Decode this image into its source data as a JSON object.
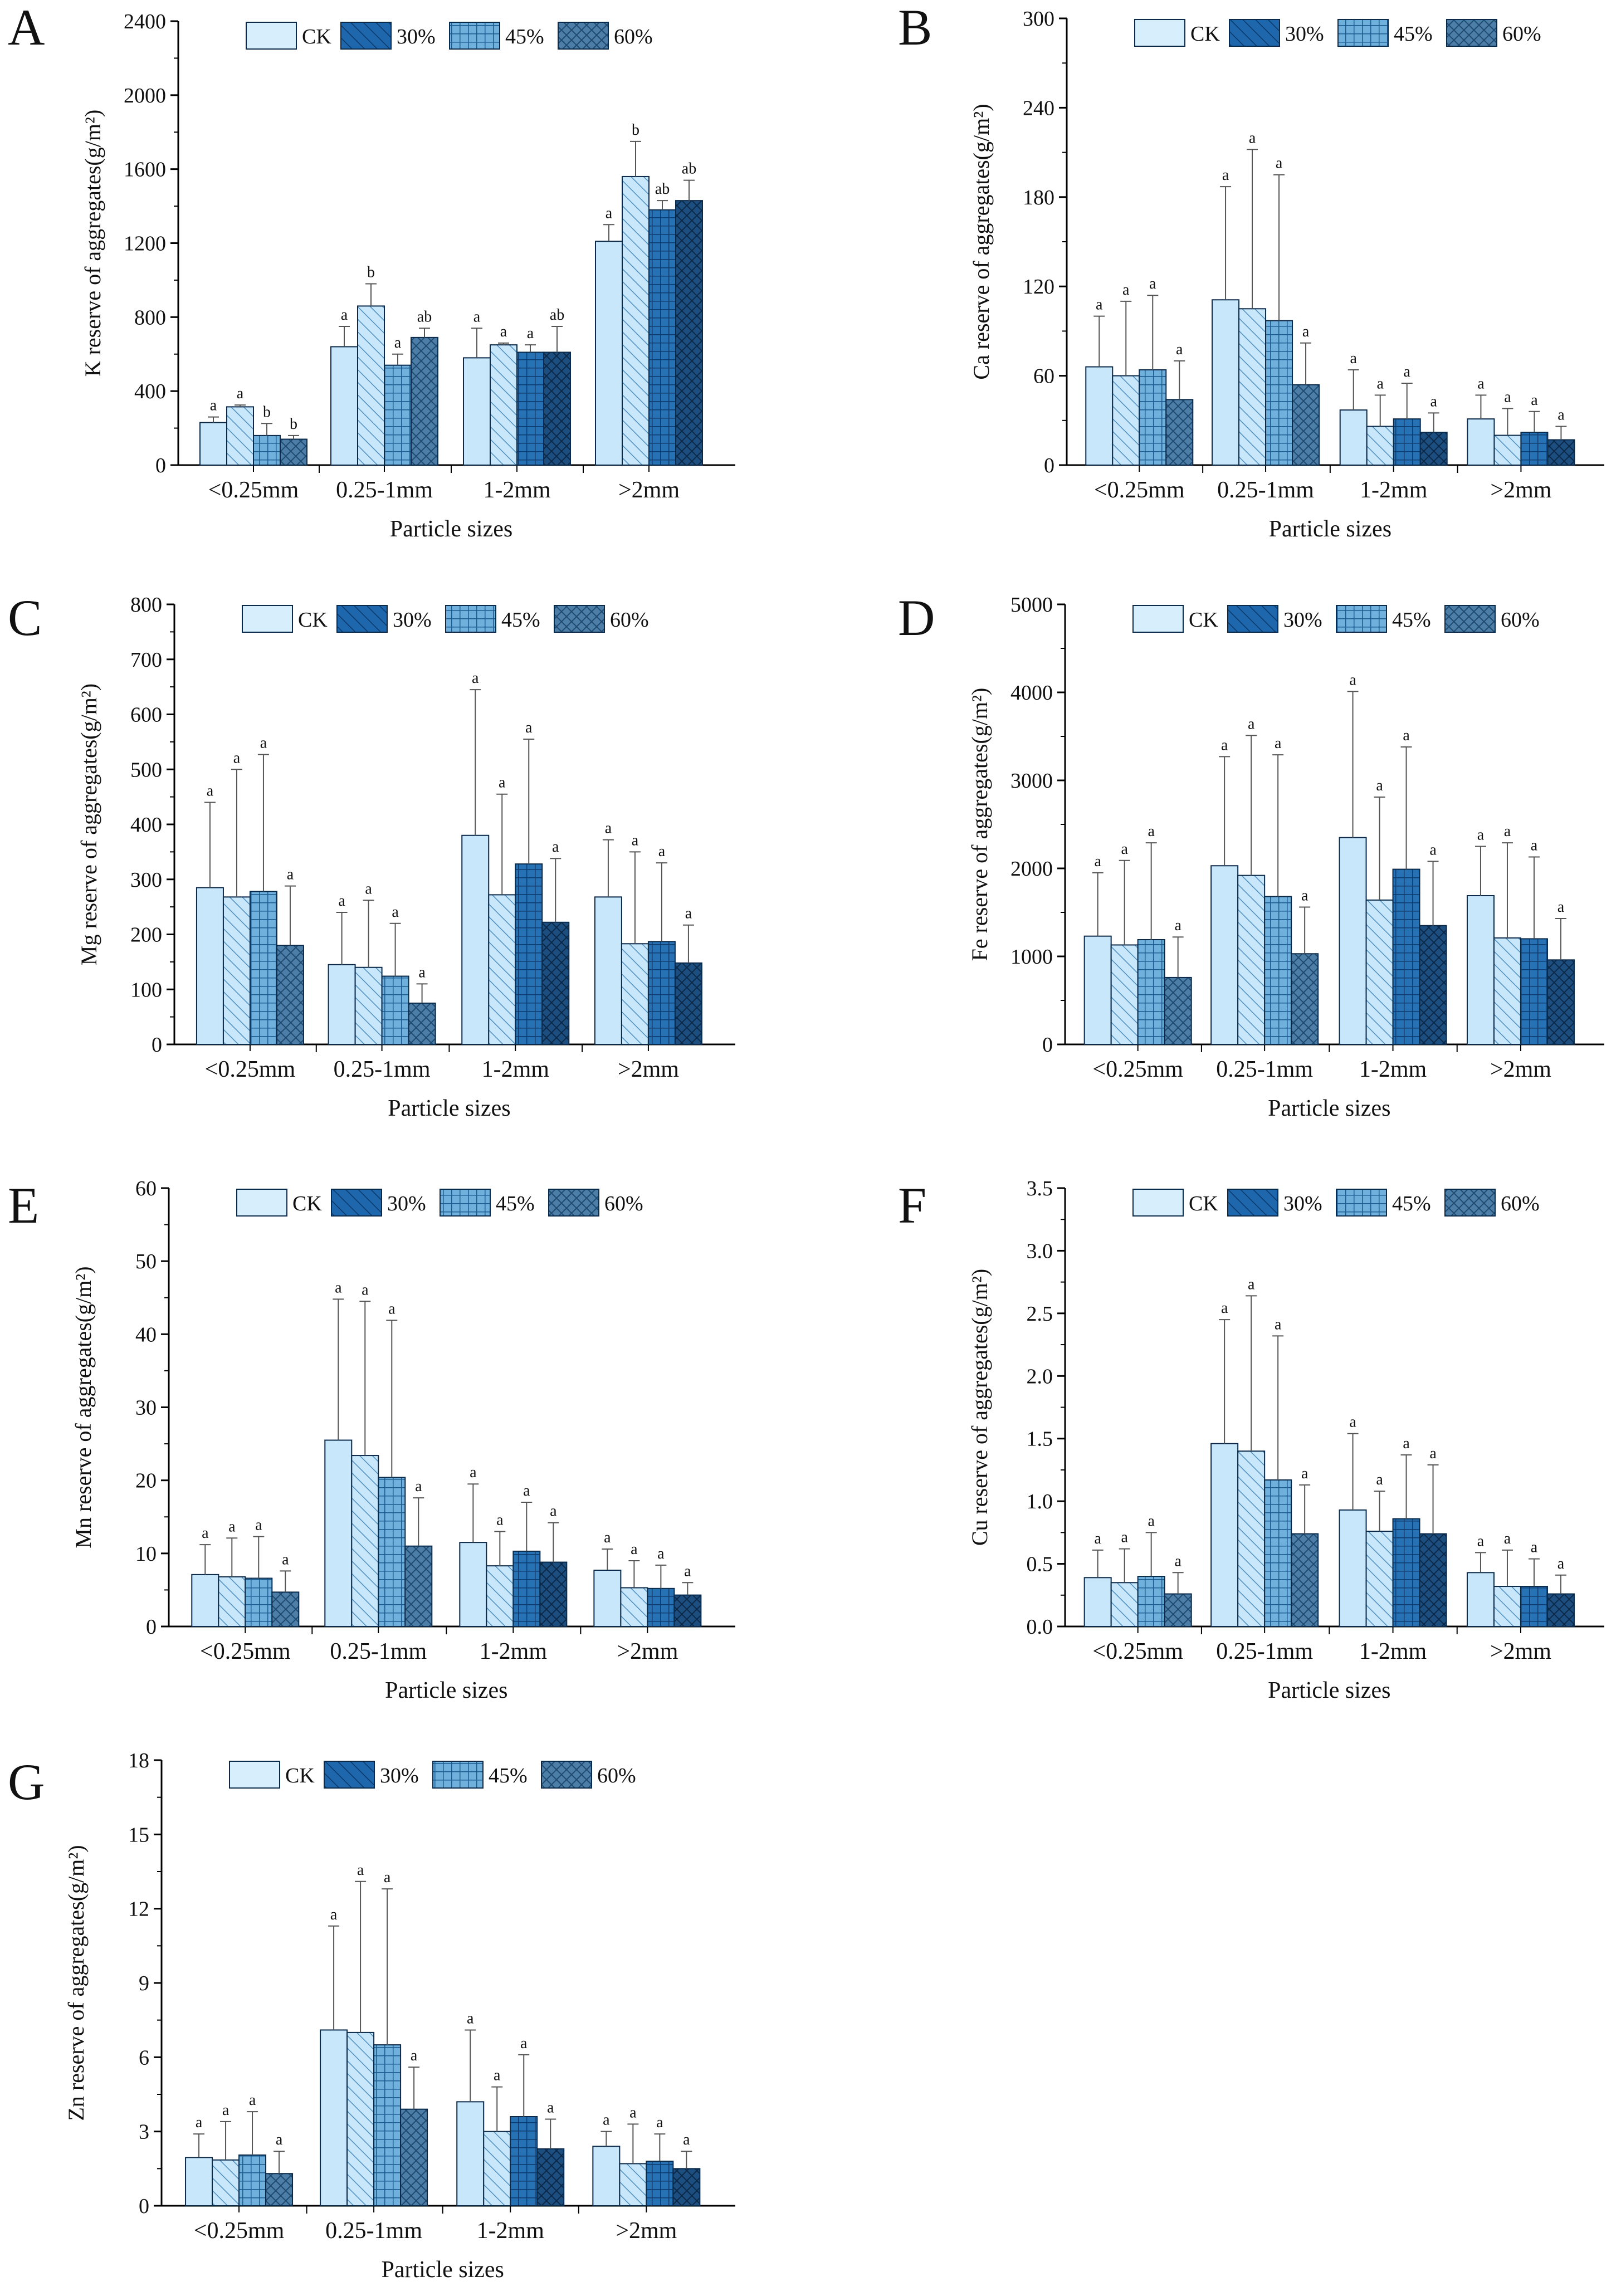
{
  "chart_data": [
    {
      "panel": "A",
      "type": "bar",
      "title": "",
      "xlabel": "Particle sizes",
      "ylabel": "K reserve of aggregates(g/m²)",
      "ylim": [
        0,
        2400
      ],
      "yticks": [
        "0",
        "400",
        "800",
        "1200",
        "1600",
        "2000",
        "2400"
      ],
      "categories": [
        "<0.25mm",
        "0.25-1mm",
        "1-2mm",
        ">2mm"
      ],
      "legend": [
        "CK",
        "30%",
        "45%",
        "60%"
      ],
      "series": [
        {
          "name": "CK",
          "values": [
            230,
            640,
            580,
            1210
          ],
          "errors": [
            260,
            750,
            740,
            1300
          ],
          "labels": [
            "a",
            "a",
            "a",
            "a"
          ]
        },
        {
          "name": "30%",
          "values": [
            315,
            860,
            650,
            1560
          ],
          "errors": [
            325,
            980,
            660,
            1750
          ],
          "labels": [
            "a",
            "b",
            "a",
            "b"
          ]
        },
        {
          "name": "45%",
          "values": [
            160,
            540,
            610,
            1380
          ],
          "errors": [
            225,
            600,
            650,
            1430
          ],
          "labels": [
            "b",
            "a",
            "a",
            "ab"
          ]
        },
        {
          "name": "60%",
          "values": [
            140,
            690,
            610,
            1430
          ],
          "errors": [
            160,
            740,
            750,
            1540
          ],
          "labels": [
            "b",
            "ab",
            "ab",
            "ab"
          ]
        }
      ]
    },
    {
      "panel": "B",
      "type": "bar",
      "xlabel": "Particle sizes",
      "ylabel": "Ca reserve of aggregates(g/m²)",
      "ylim": [
        0,
        300
      ],
      "yticks": [
        "0",
        "60",
        "120",
        "180",
        "240",
        "300"
      ],
      "categories": [
        "<0.25mm",
        "0.25-1mm",
        "1-2mm",
        ">2mm"
      ],
      "legend": [
        "CK",
        "30%",
        "45%",
        "60%"
      ],
      "series": [
        {
          "name": "CK",
          "values": [
            66,
            111,
            37,
            31
          ],
          "errors": [
            100,
            187,
            64,
            47
          ],
          "labels": [
            "a",
            "a",
            "a",
            "a"
          ]
        },
        {
          "name": "30%",
          "values": [
            60,
            105,
            26,
            20
          ],
          "errors": [
            110,
            212,
            47,
            38
          ],
          "labels": [
            "a",
            "a",
            "a",
            "a"
          ]
        },
        {
          "name": "45%",
          "values": [
            64,
            97,
            31,
            22
          ],
          "errors": [
            114,
            195,
            55,
            36
          ],
          "labels": [
            "a",
            "a",
            "a",
            "a"
          ]
        },
        {
          "name": "60%",
          "values": [
            44,
            54,
            22,
            17
          ],
          "errors": [
            70,
            82,
            35,
            26
          ],
          "labels": [
            "a",
            "a",
            "a",
            "a"
          ]
        }
      ]
    },
    {
      "panel": "C",
      "type": "bar",
      "xlabel": "Particle sizes",
      "ylabel": "Mg reserve of aggregates(g/m²)",
      "ylim": [
        0,
        800
      ],
      "yticks": [
        "0",
        "100",
        "200",
        "300",
        "400",
        "500",
        "600",
        "700",
        "800"
      ],
      "categories": [
        "<0.25mm",
        "0.25-1mm",
        "1-2mm",
        ">2mm"
      ],
      "legend": [
        "CK",
        "30%",
        "45%",
        "60%"
      ],
      "series": [
        {
          "name": "CK",
          "values": [
            285,
            145,
            380,
            268
          ],
          "errors": [
            440,
            240,
            645,
            372
          ],
          "labels": [
            "a",
            "a",
            "a",
            "a"
          ]
        },
        {
          "name": "30%",
          "values": [
            268,
            140,
            272,
            183
          ],
          "errors": [
            500,
            262,
            455,
            350
          ],
          "labels": [
            "a",
            "a",
            "a",
            "a"
          ]
        },
        {
          "name": "45%",
          "values": [
            278,
            124,
            328,
            187
          ],
          "errors": [
            527,
            220,
            555,
            330
          ],
          "labels": [
            "a",
            "a",
            "a",
            "a"
          ]
        },
        {
          "name": "60%",
          "values": [
            180,
            75,
            222,
            148
          ],
          "errors": [
            288,
            110,
            338,
            217
          ],
          "labels": [
            "a",
            "a",
            "a",
            "a"
          ]
        }
      ]
    },
    {
      "panel": "D",
      "type": "bar",
      "xlabel": "Particle sizes",
      "ylabel": "Fe reserve of aggregates(g/m²)",
      "ylim": [
        0,
        5000
      ],
      "yticks": [
        "0",
        "1000",
        "2000",
        "3000",
        "4000",
        "5000"
      ],
      "categories": [
        "<0.25mm",
        "0.25-1mm",
        "1-2mm",
        ">2mm"
      ],
      "legend": [
        "CK",
        "30%",
        "45%",
        "60%"
      ],
      "series": [
        {
          "name": "CK",
          "values": [
            1230,
            2030,
            2350,
            1690
          ],
          "errors": [
            1950,
            3270,
            4010,
            2250
          ],
          "labels": [
            "a",
            "a",
            "a",
            "a"
          ]
        },
        {
          "name": "30%",
          "values": [
            1130,
            1920,
            1640,
            1210
          ],
          "errors": [
            2090,
            3510,
            2810,
            2290
          ],
          "labels": [
            "a",
            "a",
            "a",
            "a"
          ]
        },
        {
          "name": "45%",
          "values": [
            1190,
            1680,
            1990,
            1200
          ],
          "errors": [
            2290,
            3290,
            3380,
            2130
          ],
          "labels": [
            "a",
            "a",
            "a",
            "a"
          ]
        },
        {
          "name": "60%",
          "values": [
            760,
            1030,
            1350,
            960
          ],
          "errors": [
            1220,
            1560,
            2080,
            1430
          ],
          "labels": [
            "a",
            "a",
            "a",
            "a"
          ]
        }
      ]
    },
    {
      "panel": "E",
      "type": "bar",
      "xlabel": "Particle sizes",
      "ylabel": "Mn reserve of aggregates(g/m²)",
      "ylim": [
        0,
        60
      ],
      "yticks": [
        "0",
        "10",
        "20",
        "30",
        "40",
        "50",
        "60"
      ],
      "categories": [
        "<0.25mm",
        "0.25-1mm",
        "1-2mm",
        ">2mm"
      ],
      "legend": [
        "CK",
        "30%",
        "45%",
        "60%"
      ],
      "series": [
        {
          "name": "CK",
          "values": [
            7.1,
            25.5,
            11.5,
            7.7
          ],
          "errors": [
            11.2,
            44.8,
            19.5,
            10.6
          ],
          "labels": [
            "a",
            "a",
            "a",
            "a"
          ]
        },
        {
          "name": "30%",
          "values": [
            6.8,
            23.4,
            8.3,
            5.3
          ],
          "errors": [
            12.1,
            44.5,
            13.0,
            9.0
          ],
          "labels": [
            "a",
            "a",
            "a",
            "a"
          ]
        },
        {
          "name": "45%",
          "values": [
            6.6,
            20.4,
            10.3,
            5.2
          ],
          "errors": [
            12.3,
            41.9,
            17.0,
            8.4
          ],
          "labels": [
            "a",
            "a",
            "a",
            "a"
          ]
        },
        {
          "name": "60%",
          "values": [
            4.7,
            11.0,
            8.8,
            4.3
          ],
          "errors": [
            7.6,
            17.6,
            14.2,
            6.0
          ],
          "labels": [
            "a",
            "a",
            "a",
            "a"
          ]
        }
      ]
    },
    {
      "panel": "F",
      "type": "bar",
      "xlabel": "Particle sizes",
      "ylabel": "Cu reserve of aggregates(g/m²)",
      "ylim": [
        0,
        3.5
      ],
      "yticks": [
        "0.0",
        "0.5",
        "1.0",
        "1.5",
        "2.0",
        "2.5",
        "3.0",
        "3.5"
      ],
      "categories": [
        "<0.25mm",
        "0.25-1mm",
        "1-2mm",
        ">2mm"
      ],
      "legend": [
        "CK",
        "30%",
        "45%",
        "60%"
      ],
      "series": [
        {
          "name": "CK",
          "values": [
            0.39,
            1.46,
            0.93,
            0.43
          ],
          "errors": [
            0.61,
            2.45,
            1.54,
            0.59
          ],
          "labels": [
            "a",
            "a",
            "a",
            "a"
          ]
        },
        {
          "name": "30%",
          "values": [
            0.35,
            1.4,
            0.76,
            0.32
          ],
          "errors": [
            0.62,
            2.64,
            1.08,
            0.61
          ],
          "labels": [
            "a",
            "a",
            "a",
            "a"
          ]
        },
        {
          "name": "45%",
          "values": [
            0.4,
            1.17,
            0.86,
            0.32
          ],
          "errors": [
            0.75,
            2.32,
            1.37,
            0.54
          ],
          "labels": [
            "a",
            "a",
            "a",
            "a"
          ]
        },
        {
          "name": "60%",
          "values": [
            0.26,
            0.74,
            0.74,
            0.26
          ],
          "errors": [
            0.43,
            1.13,
            1.29,
            0.41
          ],
          "labels": [
            "a",
            "a",
            "a",
            "a"
          ]
        }
      ]
    },
    {
      "panel": "G",
      "type": "bar",
      "xlabel": "Particle sizes",
      "ylabel": "Zn reserve of aggregates(g/m²)",
      "ylim": [
        0,
        18
      ],
      "yticks": [
        "0",
        "3",
        "6",
        "9",
        "12",
        "15",
        "18"
      ],
      "categories": [
        "<0.25mm",
        "0.25-1mm",
        "1-2mm",
        ">2mm"
      ],
      "legend": [
        "CK",
        "30%",
        "45%",
        "60%"
      ],
      "series": [
        {
          "name": "CK",
          "values": [
            1.95,
            7.1,
            4.2,
            2.4
          ],
          "errors": [
            2.9,
            11.3,
            7.1,
            3.0
          ],
          "labels": [
            "a",
            "a",
            "a",
            "a"
          ]
        },
        {
          "name": "30%",
          "values": [
            1.85,
            7.0,
            3.0,
            1.7
          ],
          "errors": [
            3.4,
            13.1,
            4.8,
            3.3
          ],
          "labels": [
            "a",
            "a",
            "a",
            "a"
          ]
        },
        {
          "name": "45%",
          "values": [
            2.05,
            6.5,
            3.6,
            1.8
          ],
          "errors": [
            3.8,
            12.8,
            6.1,
            2.9
          ],
          "labels": [
            "a",
            "a",
            "a",
            "a"
          ]
        },
        {
          "name": "60%",
          "values": [
            1.3,
            3.9,
            2.3,
            1.5
          ],
          "errors": [
            2.2,
            5.6,
            3.5,
            2.2
          ],
          "labels": [
            "a",
            "a",
            "a",
            "a"
          ]
        }
      ]
    }
  ]
}
